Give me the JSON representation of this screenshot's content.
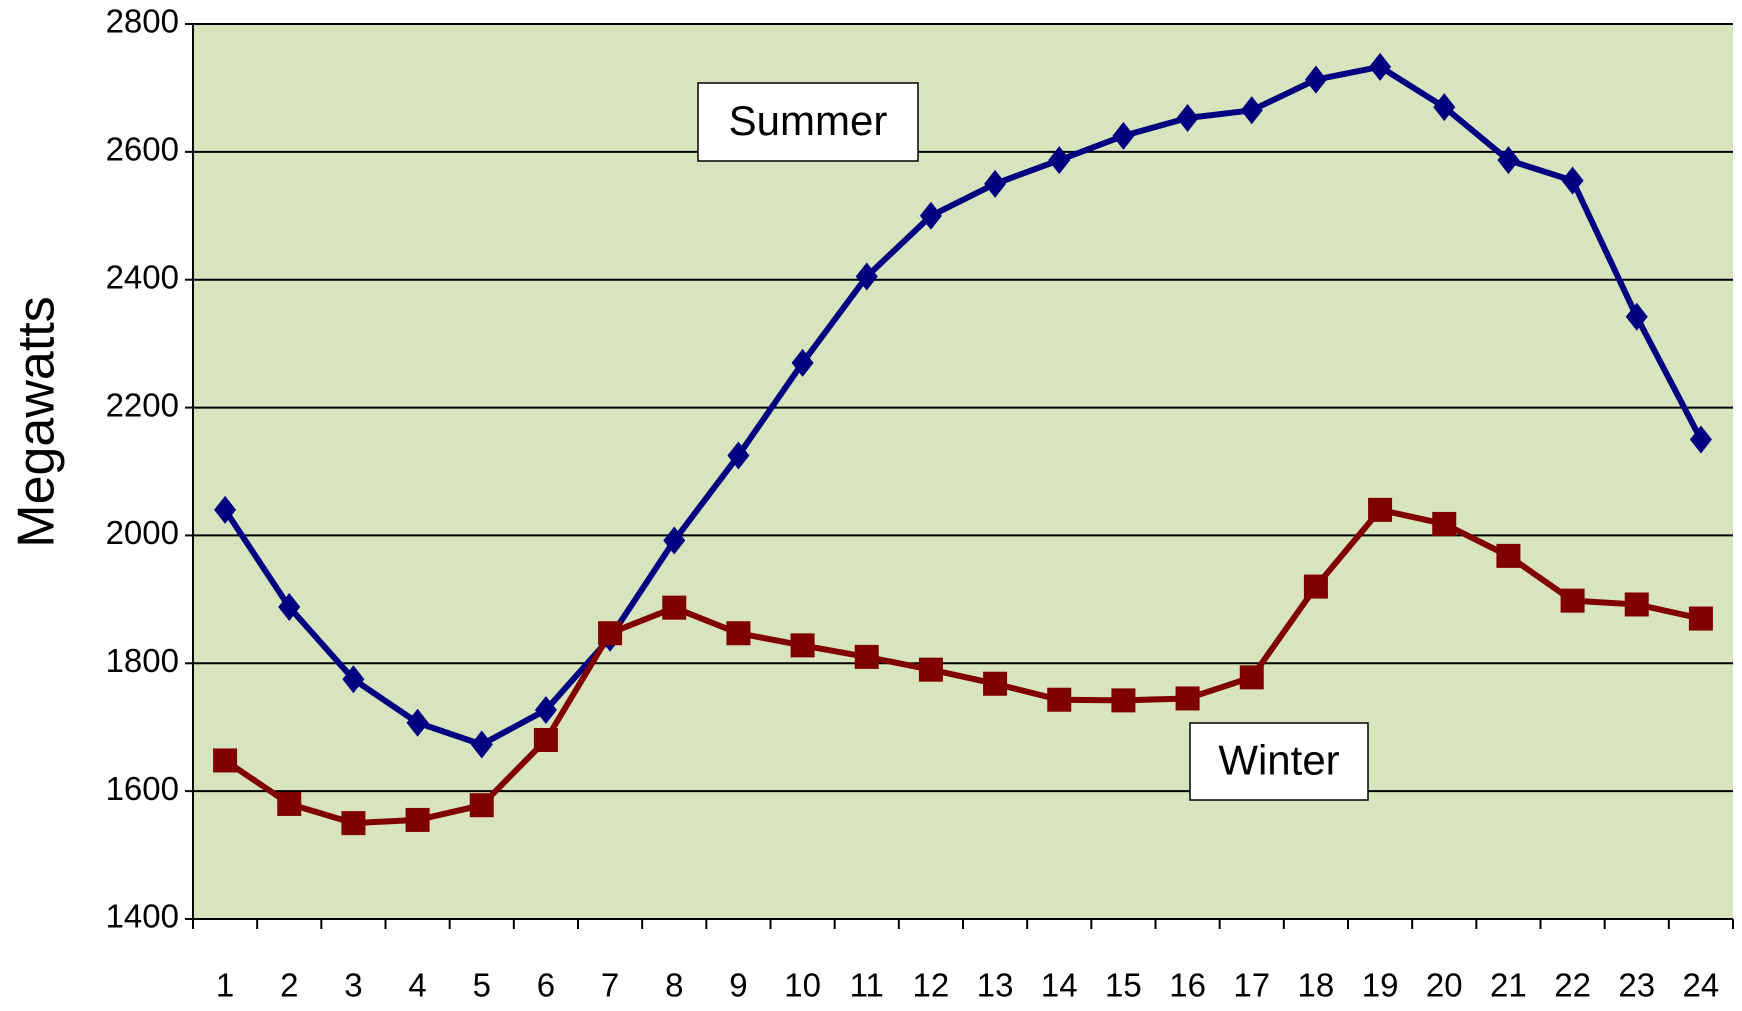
{
  "chart_data": {
    "type": "line",
    "y_label": "Megawatts",
    "categories": [
      "1",
      "2",
      "3",
      "4",
      "5",
      "6",
      "7",
      "8",
      "9",
      "10",
      "11",
      "12",
      "13",
      "14",
      "15",
      "16",
      "17",
      "18",
      "19",
      "20",
      "21",
      "22",
      "23",
      "24"
    ],
    "series": [
      {
        "name": "Summer",
        "color": "#000080",
        "marker": "diamond",
        "values": [
          2040,
          1888,
          1775,
          1707,
          1673,
          1727,
          1840,
          1992,
          2125,
          2270,
          2405,
          2500,
          2550,
          2587,
          2625,
          2653,
          2665,
          2713,
          2733,
          2670,
          2587,
          2555,
          2342,
          2150
        ]
      },
      {
        "name": "Winter",
        "color": "#800000",
        "marker": "square",
        "values": [
          1648,
          1580,
          1550,
          1555,
          1578,
          1680,
          1847,
          1887,
          1847,
          1828,
          1810,
          1790,
          1768,
          1743,
          1742,
          1745,
          1778,
          1920,
          2040,
          2018,
          1968,
          1898,
          1892,
          1870
        ]
      }
    ],
    "ylim": [
      1400,
      2800
    ],
    "yticks": [
      1400,
      1600,
      1800,
      2000,
      2200,
      2400,
      2600,
      2800
    ],
    "grid": true,
    "background": "#d7e4bd"
  }
}
